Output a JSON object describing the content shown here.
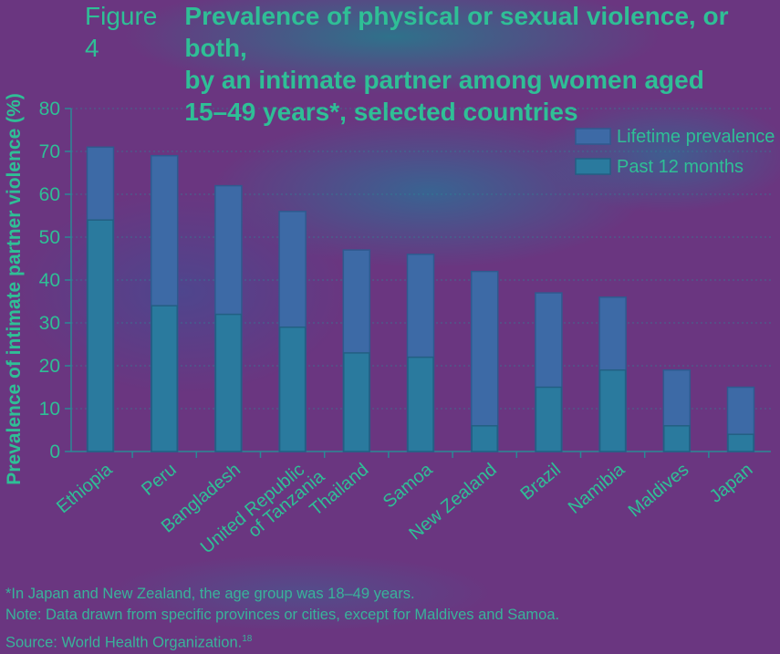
{
  "title": {
    "figure_label": "Figure 4",
    "lines": [
      "Prevalence of physical or sexual violence, or both,",
      "by an intimate partner among women aged",
      "15–49 years*, selected countries"
    ]
  },
  "chart_data": {
    "type": "bar",
    "ylabel": "Prevalence of intimate partner violence (%)",
    "ylim": [
      0,
      80
    ],
    "yticks": [
      0,
      10,
      20,
      30,
      40,
      50,
      60,
      70,
      80
    ],
    "grid": true,
    "legend_placement": "top-right",
    "categories": [
      "Ethiopia",
      "Peru",
      "Bangladesh",
      "United Republic|of Tanzania",
      "Thailand",
      "Samoa",
      "New Zealand",
      "Brazil",
      "Namibia",
      "Maldives",
      "Japan"
    ],
    "series": [
      {
        "name": "Lifetime prevalence",
        "values": [
          71,
          69,
          62,
          56,
          47,
          46,
          42,
          37,
          36,
          19,
          15
        ]
      },
      {
        "name": "Past 12 months",
        "values": [
          54,
          34,
          32,
          29,
          23,
          22,
          6,
          15,
          19,
          6,
          4
        ]
      }
    ]
  },
  "colors": {
    "lifetime": "#3d6aa6",
    "past12": "#2a7a9e",
    "text": "#2fbf96",
    "axis": "#2a8a95"
  },
  "notes": {
    "footnote": "*In Japan and New Zealand, the age group was 18–49 years.",
    "note": "Note: Data drawn from specific provinces or cities, except for Maldives and Samoa.",
    "source": "Source: World Health Organization.",
    "source_ref": "18"
  }
}
